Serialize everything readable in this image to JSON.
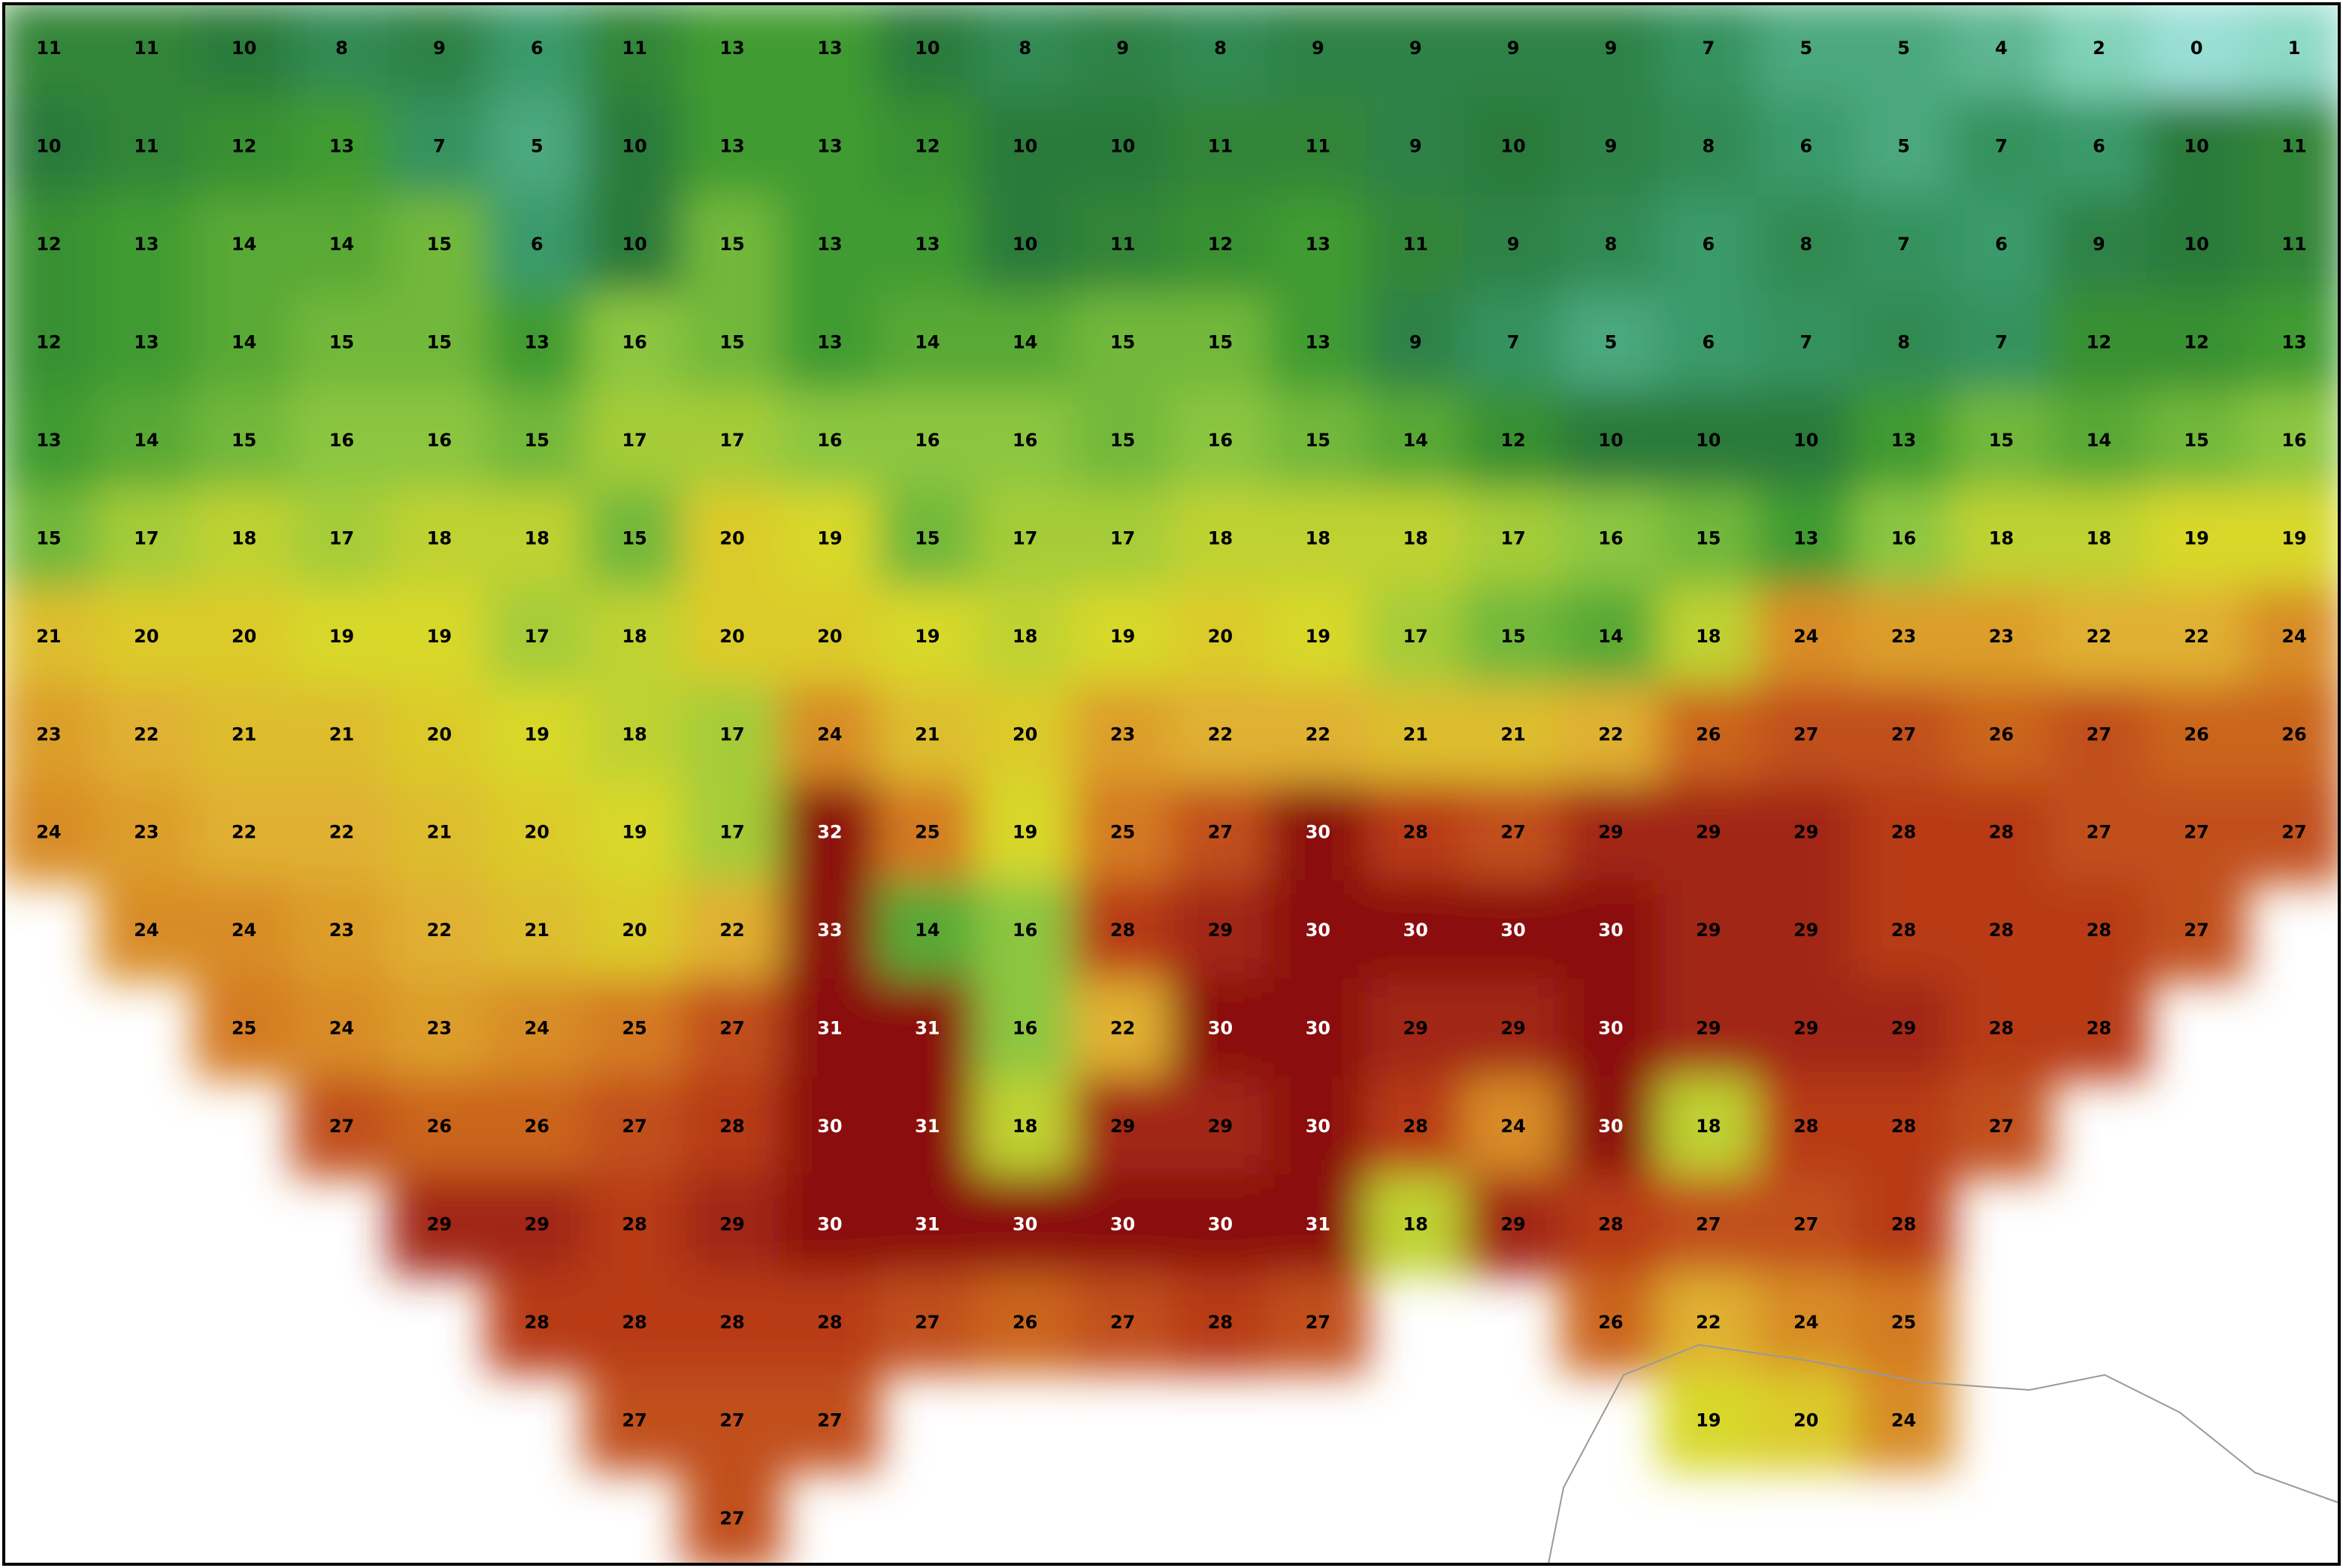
{
  "map": {
    "grid": [
      [
        11,
        11,
        10,
        8,
        9,
        6,
        11,
        13,
        13,
        10,
        8,
        9,
        8,
        9,
        9,
        9,
        9,
        7,
        5,
        5,
        4,
        2,
        0,
        1
      ],
      [
        10,
        11,
        12,
        13,
        7,
        5,
        10,
        13,
        13,
        12,
        10,
        10,
        11,
        11,
        9,
        10,
        9,
        8,
        6,
        5,
        7,
        6,
        10,
        11
      ],
      [
        12,
        13,
        14,
        14,
        15,
        6,
        10,
        15,
        13,
        13,
        10,
        11,
        12,
        13,
        11,
        9,
        8,
        6,
        8,
        7,
        6,
        9,
        10,
        11
      ],
      [
        12,
        13,
        14,
        15,
        15,
        13,
        16,
        15,
        13,
        14,
        14,
        15,
        15,
        13,
        9,
        7,
        5,
        6,
        7,
        8,
        7,
        12,
        12,
        13
      ],
      [
        13,
        14,
        15,
        16,
        16,
        15,
        17,
        17,
        16,
        16,
        16,
        15,
        16,
        15,
        14,
        12,
        10,
        10,
        10,
        13,
        15,
        14,
        15,
        16
      ],
      [
        15,
        17,
        18,
        17,
        18,
        18,
        15,
        20,
        19,
        15,
        17,
        17,
        18,
        18,
        18,
        17,
        16,
        15,
        13,
        16,
        18,
        18,
        19,
        19
      ],
      [
        21,
        20,
        20,
        19,
        19,
        17,
        18,
        20,
        20,
        19,
        18,
        19,
        20,
        19,
        17,
        15,
        14,
        18,
        24,
        23,
        23,
        22,
        22,
        24
      ],
      [
        23,
        22,
        21,
        21,
        20,
        19,
        18,
        17,
        24,
        21,
        20,
        23,
        22,
        22,
        21,
        21,
        22,
        26,
        27,
        27,
        26,
        27,
        26,
        26
      ],
      [
        24,
        23,
        22,
        22,
        21,
        20,
        19,
        17,
        32,
        25,
        19,
        25,
        27,
        30,
        28,
        27,
        29,
        29,
        29,
        28,
        28,
        27,
        27,
        27
      ],
      [
        null,
        24,
        24,
        23,
        22,
        21,
        20,
        22,
        33,
        14,
        16,
        28,
        29,
        30,
        30,
        30,
        30,
        29,
        29,
        28,
        28,
        28,
        27,
        null
      ],
      [
        null,
        null,
        25,
        24,
        23,
        24,
        25,
        27,
        31,
        31,
        16,
        22,
        30,
        30,
        29,
        29,
        30,
        29,
        29,
        29,
        28,
        28,
        null,
        null
      ],
      [
        null,
        null,
        null,
        27,
        26,
        26,
        27,
        28,
        30,
        31,
        18,
        29,
        29,
        30,
        28,
        24,
        30,
        18,
        28,
        28,
        27,
        null,
        null,
        null
      ],
      [
        null,
        null,
        null,
        null,
        29,
        29,
        28,
        29,
        30,
        31,
        30,
        30,
        30,
        31,
        18,
        29,
        28,
        27,
        27,
        28,
        null,
        null,
        null,
        null
      ],
      [
        null,
        null,
        null,
        null,
        null,
        28,
        28,
        28,
        28,
        27,
        26,
        27,
        28,
        27,
        null,
        null,
        26,
        22,
        24,
        25,
        null,
        null,
        null,
        null
      ],
      [
        null,
        null,
        null,
        null,
        null,
        null,
        27,
        27,
        27,
        null,
        null,
        null,
        null,
        null,
        null,
        null,
        null,
        19,
        20,
        24,
        null,
        null,
        null,
        null
      ],
      [
        null,
        null,
        null,
        null,
        null,
        null,
        null,
        27,
        null,
        null,
        null,
        null,
        null,
        null,
        null,
        null,
        null,
        null,
        null,
        null,
        null,
        null,
        null,
        null
      ]
    ],
    "colormap": [
      {
        "value": -2,
        "color": "#b4ecf2"
      },
      {
        "value": 2,
        "color": "#80d2b8"
      },
      {
        "value": 6,
        "color": "#3a9a6a"
      },
      {
        "value": 10,
        "color": "#2a7a3a"
      },
      {
        "value": 13,
        "color": "#3f9b30"
      },
      {
        "value": 16,
        "color": "#8cc63f"
      },
      {
        "value": 19,
        "color": "#d8d82a"
      },
      {
        "value": 22,
        "color": "#e0b030"
      },
      {
        "value": 25,
        "color": "#d47a20"
      },
      {
        "value": 28,
        "color": "#b83a18"
      },
      {
        "value": 30,
        "color": "#8b1010"
      }
    ]
  }
}
